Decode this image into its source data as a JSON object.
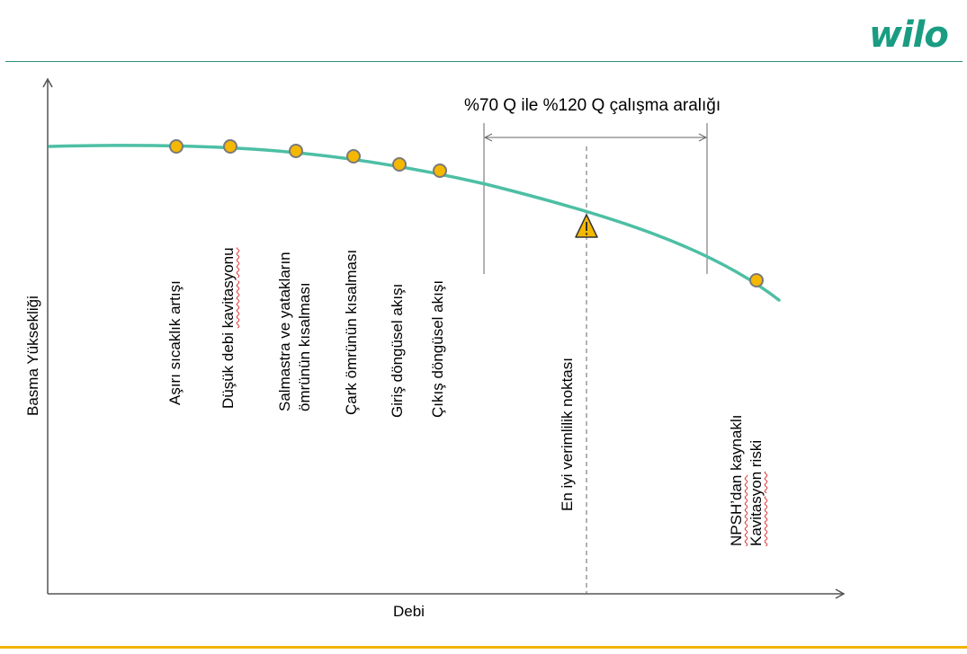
{
  "brand": {
    "logo_text": "wilo",
    "color": "#1a9c82",
    "accent": "#f2b400"
  },
  "axes": {
    "x_label": "Debi",
    "y_label": "Basma Yüksekliği"
  },
  "range_annotation": {
    "label": "%70 Q  ile %120 Q çalışma aralığı"
  },
  "operating_points": [
    {
      "label": "Aşırı sıcaklık artışı"
    },
    {
      "label_prefix": "Düşük debi ",
      "label_flagged": "kavitasyonu"
    },
    {
      "line1": "Salmastra ve yatakların",
      "line2": "ömrünün kısalması"
    },
    {
      "label": "Çark ömrünün kısalması"
    },
    {
      "label": "Giriş döngüsel akışı"
    },
    {
      "label": "Çıkış döngüsel akışı"
    }
  ],
  "bep": {
    "label": "En iyi verimlilik noktası",
    "icon": "warning-triangle-icon"
  },
  "npsh": {
    "line1_flagged": "NPSH’dan",
    "line1_rest": " kaynaklı",
    "line2_flagged": "Kavitasyon",
    "line2_rest": " riski"
  },
  "colors": {
    "curve": "#4dbfa4",
    "marker_fill": "#f5b800",
    "marker_stroke": "#7a7a7a",
    "axis": "#555555"
  }
}
